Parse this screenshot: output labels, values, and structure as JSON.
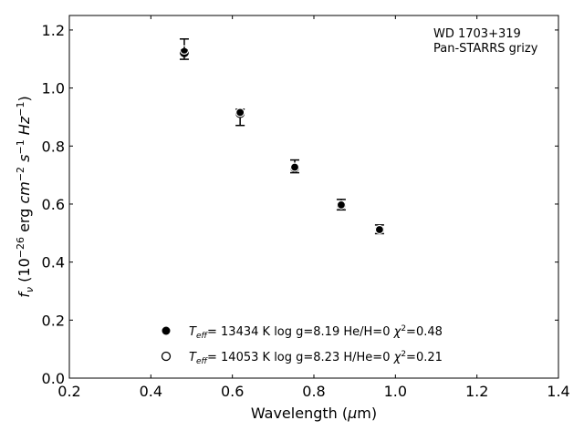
{
  "chart_data": {
    "type": "scatter",
    "title": "",
    "xlabel": "Wavelength (μm)",
    "ylabel": "f_ν (10^-26 erg cm^-2 s^-1 Hz^-1)",
    "xlim": [
      0.2,
      1.4
    ],
    "ylim": [
      0.0,
      1.25
    ],
    "xticks": [
      "0.2",
      "0.4",
      "0.6",
      "0.8",
      "1.0",
      "1.2",
      "1.4"
    ],
    "yticks": [
      "0.0",
      "0.2",
      "0.4",
      "0.6",
      "0.8",
      "1.0",
      "1.2"
    ],
    "grid": false,
    "annotation": [
      "WD 1703+319",
      "Pan-STARRS grizy"
    ],
    "observed": {
      "x": [
        0.482,
        0.619,
        0.753,
        0.867,
        0.961
      ],
      "y": [
        1.134,
        0.899,
        0.73,
        0.598,
        0.513
      ],
      "yerr": [
        0.035,
        0.028,
        0.022,
        0.018,
        0.015
      ]
    },
    "series": [
      {
        "name": "T_eff= 13434 K  log g=8.19  He/H=0  χ²=0.48",
        "marker": "filled-circle",
        "x": [
          0.482,
          0.619,
          0.753,
          0.867,
          0.961
        ],
        "y": [
          1.122,
          0.912,
          0.725,
          0.596,
          0.512
        ]
      },
      {
        "name": "T_eff= 14053 K  log g=8.23  H/He=0  χ²=0.21",
        "marker": "open-circle",
        "x": [
          0.482,
          0.619,
          0.753,
          0.867,
          0.961
        ],
        "y": [
          1.131,
          0.916,
          0.727,
          0.597,
          0.512
        ]
      }
    ],
    "legend": {
      "placement": "bottom-center",
      "entries": [
        {
          "teff": "= 13434 K",
          "logg": "log g=8.19",
          "comp": "He/H=0",
          "chi": "=0.48"
        },
        {
          "teff": "= 14053 K",
          "logg": "log g=8.23",
          "comp": "H/He=0",
          "chi": "=0.21"
        }
      ]
    }
  }
}
